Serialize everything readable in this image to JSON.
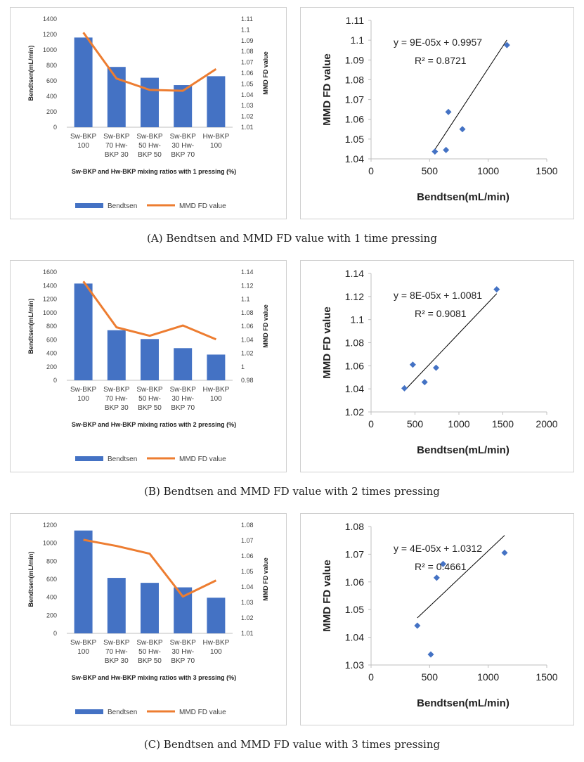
{
  "captions": [
    "(A) Bendtsen and MMD FD value with 1 time pressing",
    "(B) Bendtsen and MMD FD value with 2 times pressing",
    "(C) Bendtsen and MMD FD value with 3 times pressing"
  ],
  "chart_data": [
    {
      "type": "bar",
      "panel": "A-combo",
      "categories": [
        [
          "Sw-BKP",
          "100"
        ],
        [
          "Sw-BKP",
          "70 Hw-",
          "BKP 30"
        ],
        [
          "Sw-BKP",
          "50 Hw-",
          "BKP 50"
        ],
        [
          "Sw-BKP",
          "30 Hw-",
          "BKP 70"
        ],
        [
          "Hw-BKP",
          "100"
        ]
      ],
      "series": [
        {
          "name": "Bendtsen",
          "kind": "bar",
          "axis": "left",
          "values": [
            1160,
            780,
            640,
            545,
            660
          ]
        },
        {
          "name": "MMD FD value",
          "kind": "line",
          "axis": "right",
          "values": [
            1.0975,
            1.055,
            1.0445,
            1.0437,
            1.0637
          ]
        }
      ],
      "ylabel": "Bendtsen(mL/min)",
      "y2label": "MMD FD value",
      "ylim": [
        0,
        1400
      ],
      "ystep": 200,
      "y2ticks": [
        "1.01",
        "1.02",
        "1.03",
        "1.04",
        "1.05",
        "1.06",
        "1.07",
        "1.08",
        "1.09",
        "1.1",
        "1.11"
      ],
      "y2lim": [
        1.01,
        1.11
      ],
      "xlabel": "Sw-BKP and Hw-BKP mixing ratios with 1 pressing (%)",
      "legend": [
        "Bendtsen",
        "MMD FD value"
      ]
    },
    {
      "type": "scatter",
      "panel": "A-scatter",
      "points": [
        [
          1160,
          1.0975
        ],
        [
          780,
          1.055
        ],
        [
          640,
          1.0445
        ],
        [
          545,
          1.0437
        ],
        [
          660,
          1.0637
        ]
      ],
      "xticks": [
        "0",
        "500",
        "1000",
        "1500"
      ],
      "xlim": [
        0,
        1500
      ],
      "yticks": [
        "1.04",
        "1.05",
        "1.06",
        "1.07",
        "1.08",
        "1.09",
        "1.1",
        "1.11"
      ],
      "ylim": [
        1.04,
        1.11
      ],
      "trend": {
        "slope": 9e-05,
        "intercept": 0.9957,
        "x": [
          545,
          1160
        ]
      },
      "equation": "y = 9E-05x + 0.9957",
      "r2": "R² = 0.8721",
      "xlabel": "Bendtsen(mL/min)",
      "ylabel": "MMD FD value"
    },
    {
      "type": "bar",
      "panel": "B-combo",
      "categories": [
        [
          "Sw-BKP",
          "100"
        ],
        [
          "Sw-BKP",
          "70 Hw-",
          "BKP 30"
        ],
        [
          "Sw-BKP",
          "50 Hw-",
          "BKP 50"
        ],
        [
          "Sw-BKP",
          "30 Hw-",
          "BKP 70"
        ],
        [
          "Hw-BKP",
          "100"
        ]
      ],
      "series": [
        {
          "name": "Bendtsen",
          "kind": "bar",
          "axis": "left",
          "values": [
            1430,
            740,
            610,
            475,
            380
          ]
        },
        {
          "name": "MMD FD value",
          "kind": "line",
          "axis": "right",
          "values": [
            1.1262,
            1.0583,
            1.0458,
            1.061,
            1.0405
          ]
        }
      ],
      "ylabel": "Bendtsen(mL/min)",
      "y2label": "MMD FD value",
      "ylim": [
        0,
        1600
      ],
      "ystep": 200,
      "y2ticks": [
        "0.98",
        "1",
        "1.02",
        "1.04",
        "1.06",
        "1.08",
        "1.1",
        "1.12",
        "1.14"
      ],
      "y2lim": [
        0.98,
        1.14
      ],
      "xlabel": "Sw-BKP and Hw-BKP mixing ratios with 2 pressing (%)",
      "legend": [
        "Bendtsen",
        "MMD FD value"
      ]
    },
    {
      "type": "scatter",
      "panel": "B-scatter",
      "points": [
        [
          1430,
          1.1262
        ],
        [
          740,
          1.0583
        ],
        [
          610,
          1.0458
        ],
        [
          475,
          1.061
        ],
        [
          380,
          1.0405
        ]
      ],
      "xticks": [
        "0",
        "500",
        "1000",
        "1500",
        "2000"
      ],
      "xlim": [
        0,
        2000
      ],
      "yticks": [
        "1.02",
        "1.04",
        "1.06",
        "1.08",
        "1.1",
        "1.12",
        "1.14"
      ],
      "ylim": [
        1.02,
        1.14
      ],
      "trend": {
        "slope": 8e-05,
        "intercept": 1.0081,
        "x": [
          380,
          1430
        ]
      },
      "equation": "y = 8E-05x + 1.0081",
      "r2": "R² = 0.9081",
      "xlabel": "Bendtsen(mL/min)",
      "ylabel": "MMD FD value"
    },
    {
      "type": "bar",
      "panel": "C-combo",
      "categories": [
        [
          "Sw-BKP",
          "100"
        ],
        [
          "Sw-BKP",
          "70 Hw-",
          "BKP 30"
        ],
        [
          "Sw-BKP",
          "50 Hw-",
          "BKP 50"
        ],
        [
          "Sw-BKP",
          "30 Hw-",
          "BKP 70"
        ],
        [
          "Hw-BKP",
          "100"
        ]
      ],
      "series": [
        {
          "name": "Bendtsen",
          "kind": "bar",
          "axis": "left",
          "values": [
            1140,
            615,
            560,
            510,
            395
          ]
        },
        {
          "name": "MMD FD value",
          "kind": "line",
          "axis": "right",
          "values": [
            1.0705,
            1.0665,
            1.0615,
            1.0338,
            1.0442
          ]
        }
      ],
      "ylabel": "Bendtsen(mL/min)",
      "y2label": "MMD FD value",
      "ylim": [
        0,
        1200
      ],
      "ystep": 200,
      "y2ticks": [
        "1.01",
        "1.02",
        "1.03",
        "1.04",
        "1.05",
        "1.06",
        "1.07",
        "1.08"
      ],
      "y2lim": [
        1.01,
        1.08
      ],
      "xlabel": "Sw-BKP and Hw-BKP mixing ratios with 3 pressing (%)",
      "legend": [
        "Bendtsen",
        "MMD FD value"
      ]
    },
    {
      "type": "scatter",
      "panel": "C-scatter",
      "points": [
        [
          1140,
          1.0705
        ],
        [
          615,
          1.0665
        ],
        [
          560,
          1.0615
        ],
        [
          510,
          1.0338
        ],
        [
          395,
          1.0442
        ]
      ],
      "xticks": [
        "0",
        "500",
        "1000",
        "1500"
      ],
      "xlim": [
        0,
        1500
      ],
      "yticks": [
        "1.03",
        "1.04",
        "1.05",
        "1.06",
        "1.07",
        "1.08"
      ],
      "ylim": [
        1.03,
        1.08
      ],
      "trend": {
        "slope": 4e-05,
        "intercept": 1.0312,
        "x": [
          395,
          1140
        ]
      },
      "equation": "y = 4E-05x + 1.0312",
      "r2": "R² = 0.4661",
      "xlabel": "Bendtsen(mL/min)",
      "ylabel": "MMD FD value"
    }
  ],
  "colors": {
    "bar": "#4472C4",
    "line": "#ED7D31",
    "scatter": "#4472C4",
    "axis": "#bfbfbf",
    "text": "#404040",
    "trend": "#000000"
  }
}
